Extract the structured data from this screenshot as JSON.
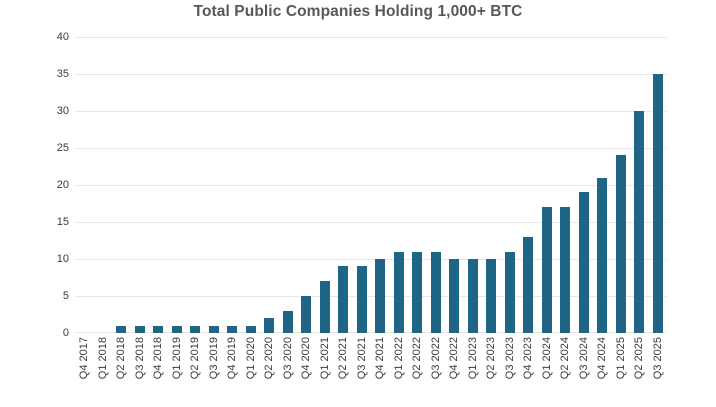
{
  "chart_data": {
    "type": "bar",
    "title": "Total Public Companies Holding 1,000+ BTC",
    "xlabel": "",
    "ylabel": "",
    "categories": [
      "Q4 2017",
      "Q1 2018",
      "Q2 2018",
      "Q3 2018",
      "Q4 2018",
      "Q1 2019",
      "Q2 2019",
      "Q3 2019",
      "Q4 2019",
      "Q1 2020",
      "Q2 2020",
      "Q3 2020",
      "Q4 2020",
      "Q1 2021",
      "Q2 2021",
      "Q3 2021",
      "Q4 2021",
      "Q1 2022",
      "Q2 2022",
      "Q3 2022",
      "Q4 2022",
      "Q1 2023",
      "Q2 2023",
      "Q3 2023",
      "Q4 2023",
      "Q1 2024",
      "Q2 2024",
      "Q3 2024",
      "Q4 2024",
      "Q1 2025",
      "Q2 2025",
      "Q3 2025"
    ],
    "values": [
      0,
      0,
      1,
      1,
      1,
      1,
      1,
      1,
      1,
      1,
      2,
      3,
      5,
      7,
      9,
      9,
      10,
      11,
      11,
      11,
      10,
      10,
      10,
      11,
      13,
      17,
      17,
      19,
      21,
      24,
      30,
      35
    ],
    "ylim": [
      0,
      40
    ],
    "yticks": [
      0,
      5,
      10,
      15,
      20,
      25,
      30,
      35,
      40
    ],
    "grid": true,
    "legend": false
  },
  "colors": {
    "bar": "#1F6586",
    "title": "#57585B",
    "axis_label": "#3A3A3A",
    "gridline": "#E7E7E7",
    "background": "#FFFFFF"
  }
}
